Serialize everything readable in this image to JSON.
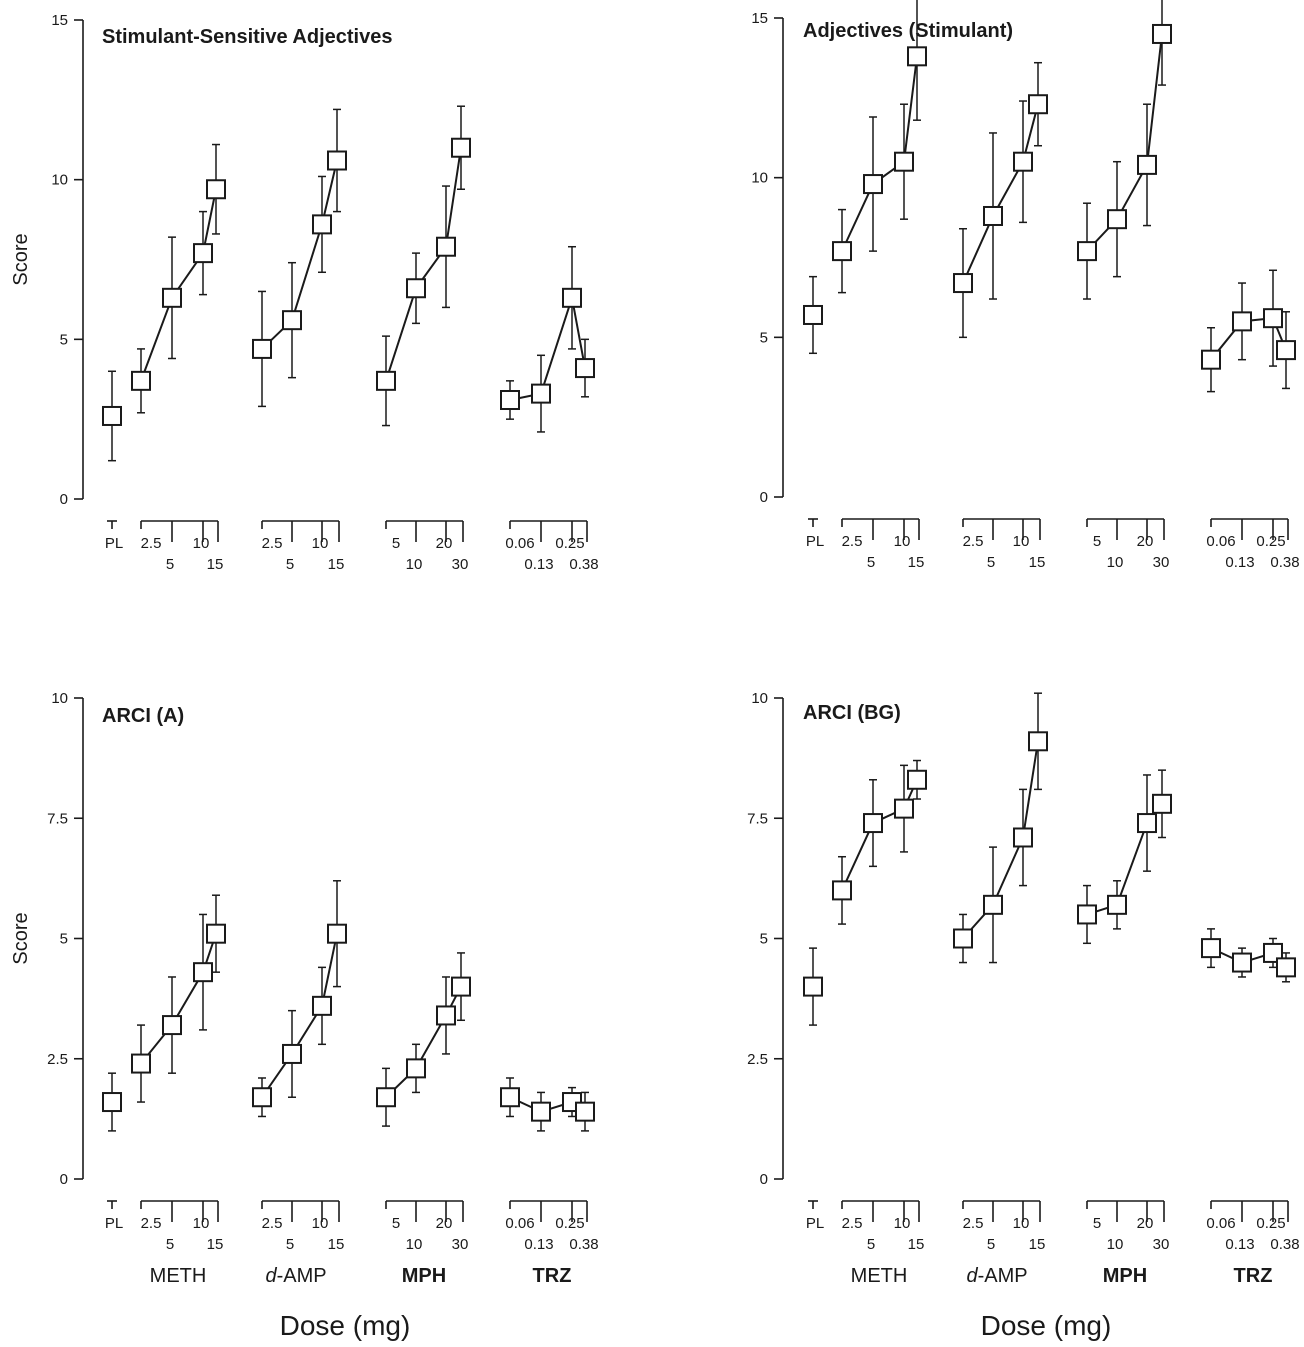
{
  "figure": {
    "xlabel": "Dose (mg)",
    "ylabel": "Score",
    "group_labels": [
      {
        "text": "METH",
        "style": "normal"
      },
      {
        "text": "d-AMP",
        "style": "d-italic"
      },
      {
        "text": "MPH",
        "style": "bold"
      },
      {
        "text": "TRZ",
        "style": "bold"
      }
    ]
  },
  "chart_data": [
    {
      "type": "line",
      "title": "Stimulant-Sensitive Adjectives",
      "ylabel": "Score",
      "ylim": [
        0,
        15
      ],
      "yticks": [
        "0",
        "5",
        "10",
        "15"
      ],
      "grid": false,
      "markers": "open-square",
      "error_bars": true,
      "groups": [
        {
          "name": "PL",
          "doses": [
            "PL"
          ],
          "values": [
            2.6
          ],
          "errors": [
            1.4
          ]
        },
        {
          "name": "METH",
          "doses": [
            "2.5",
            "5",
            "10",
            "15"
          ],
          "values": [
            3.7,
            6.3,
            7.7,
            9.7
          ],
          "errors": [
            1.0,
            1.9,
            1.3,
            1.4
          ]
        },
        {
          "name": "d-AMP",
          "doses": [
            "2.5",
            "5",
            "10",
            "15"
          ],
          "values": [
            4.7,
            5.6,
            8.6,
            10.6
          ],
          "errors": [
            1.8,
            1.8,
            1.5,
            1.6
          ]
        },
        {
          "name": "MPH",
          "doses": [
            "5",
            "10",
            "20",
            "30"
          ],
          "values": [
            3.7,
            6.6,
            7.9,
            11.0
          ],
          "errors": [
            1.4,
            1.1,
            1.9,
            1.3
          ]
        },
        {
          "name": "TRZ",
          "doses": [
            "0.06",
            "0.13",
            "0.25",
            "0.38"
          ],
          "values": [
            3.1,
            3.3,
            6.3,
            4.1
          ],
          "errors": [
            0.6,
            1.2,
            1.6,
            0.9
          ]
        }
      ]
    },
    {
      "type": "line",
      "title": "Adjectives (Stimulant)",
      "ylabel": "",
      "ylim": [
        0,
        15
      ],
      "yticks": [
        "0",
        "5",
        "10",
        "15"
      ],
      "grid": false,
      "markers": "open-square",
      "error_bars": true,
      "groups": [
        {
          "name": "PL",
          "doses": [
            "PL"
          ],
          "values": [
            5.7
          ],
          "errors": [
            1.2
          ]
        },
        {
          "name": "METH",
          "doses": [
            "2.5",
            "5",
            "10",
            "15"
          ],
          "values": [
            7.7,
            9.8,
            10.5,
            13.8
          ],
          "errors": [
            1.3,
            2.1,
            1.8,
            2.0
          ]
        },
        {
          "name": "d-AMP",
          "doses": [
            "2.5",
            "5",
            "10",
            "15"
          ],
          "values": [
            6.7,
            8.8,
            10.5,
            12.3
          ],
          "errors": [
            1.7,
            2.6,
            1.9,
            1.3
          ]
        },
        {
          "name": "MPH",
          "doses": [
            "5",
            "10",
            "20",
            "30"
          ],
          "values": [
            7.7,
            8.7,
            10.4,
            14.5
          ],
          "errors": [
            1.5,
            1.8,
            1.9,
            1.6
          ]
        },
        {
          "name": "TRZ",
          "doses": [
            "0.06",
            "0.13",
            "0.25",
            "0.38"
          ],
          "values": [
            4.3,
            5.5,
            5.6,
            4.6
          ],
          "errors": [
            1.0,
            1.2,
            1.5,
            1.2
          ]
        }
      ]
    },
    {
      "type": "line",
      "title": "ARCI (A)",
      "ylabel": "Score",
      "ylim": [
        0,
        10
      ],
      "yticks": [
        "0",
        "2.5",
        "5",
        "7.5",
        "10"
      ],
      "grid": false,
      "markers": "open-square",
      "error_bars": true,
      "groups": [
        {
          "name": "PL",
          "doses": [
            "PL"
          ],
          "values": [
            1.6
          ],
          "errors": [
            0.6
          ]
        },
        {
          "name": "METH",
          "doses": [
            "2.5",
            "5",
            "10",
            "15"
          ],
          "values": [
            2.4,
            3.2,
            4.3,
            5.1
          ],
          "errors": [
            0.8,
            1.0,
            1.2,
            0.8
          ]
        },
        {
          "name": "d-AMP",
          "doses": [
            "2.5",
            "5",
            "10",
            "15"
          ],
          "values": [
            1.7,
            2.6,
            3.6,
            5.1
          ],
          "errors": [
            0.4,
            0.9,
            0.8,
            1.1
          ]
        },
        {
          "name": "MPH",
          "doses": [
            "5",
            "10",
            "20",
            "30"
          ],
          "values": [
            1.7,
            2.3,
            3.4,
            4.0
          ],
          "errors": [
            0.6,
            0.5,
            0.8,
            0.7
          ]
        },
        {
          "name": "TRZ",
          "doses": [
            "0.06",
            "0.13",
            "0.25",
            "0.38"
          ],
          "values": [
            1.7,
            1.4,
            1.6,
            1.4
          ],
          "errors": [
            0.4,
            0.4,
            0.3,
            0.4
          ]
        }
      ]
    },
    {
      "type": "line",
      "title": "ARCI (BG)",
      "ylabel": "",
      "ylim": [
        0,
        10
      ],
      "yticks": [
        "0",
        "2.5",
        "5",
        "7.5",
        "10"
      ],
      "grid": false,
      "markers": "open-square",
      "error_bars": true,
      "groups": [
        {
          "name": "PL",
          "doses": [
            "PL"
          ],
          "values": [
            4.0
          ],
          "errors": [
            0.8
          ]
        },
        {
          "name": "METH",
          "doses": [
            "2.5",
            "5",
            "10",
            "15"
          ],
          "values": [
            6.0,
            7.4,
            7.7,
            8.3
          ],
          "errors": [
            0.7,
            0.9,
            0.9,
            0.4
          ]
        },
        {
          "name": "d-AMP",
          "doses": [
            "2.5",
            "5",
            "10",
            "15"
          ],
          "values": [
            5.0,
            5.7,
            7.1,
            9.1
          ],
          "errors": [
            0.5,
            1.2,
            1.0,
            1.0
          ]
        },
        {
          "name": "MPH",
          "doses": [
            "5",
            "10",
            "20",
            "30"
          ],
          "values": [
            5.5,
            5.7,
            7.4,
            7.8
          ],
          "errors": [
            0.6,
            0.5,
            1.0,
            0.7
          ]
        },
        {
          "name": "TRZ",
          "doses": [
            "0.06",
            "0.13",
            "0.25",
            "0.38"
          ],
          "values": [
            4.8,
            4.5,
            4.7,
            4.4
          ],
          "errors": [
            0.4,
            0.3,
            0.3,
            0.3
          ]
        }
      ]
    }
  ]
}
